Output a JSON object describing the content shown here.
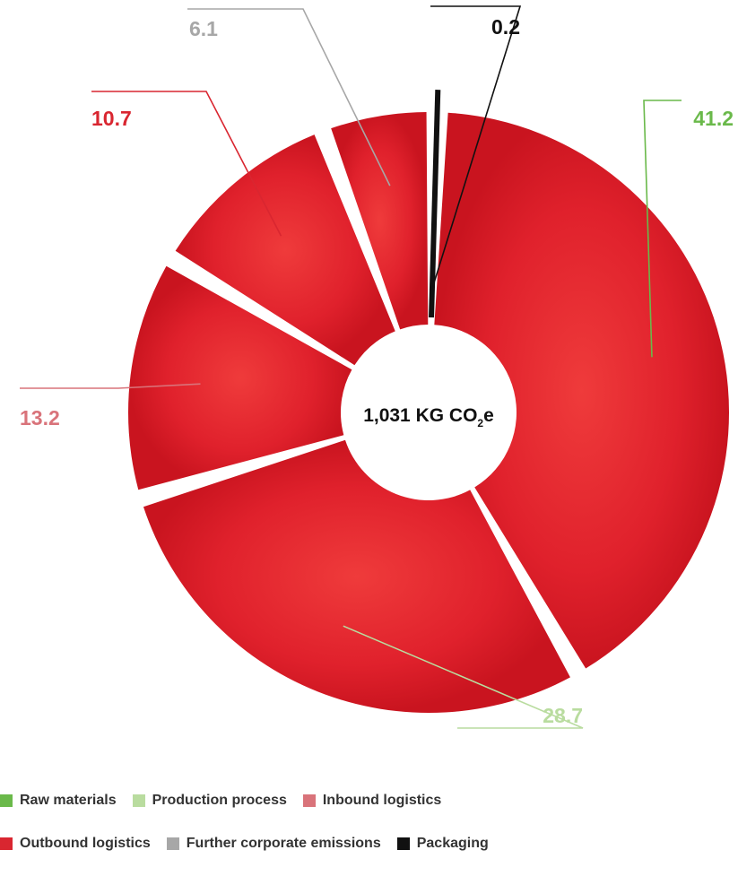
{
  "chart_data": {
    "type": "pie",
    "center_label": {
      "main": "1,031 KG CO",
      "sub": "2",
      "suffix": "e"
    },
    "slices": [
      {
        "label": "Raw materials",
        "value": 41.2,
        "color": "#6ab94a"
      },
      {
        "label": "Production process",
        "value": 28.7,
        "color": "#b9dc9f"
      },
      {
        "label": "Inbound logistics",
        "value": 13.2,
        "color": "#d9737a"
      },
      {
        "label": "Outbound logistics",
        "value": 10.7,
        "color": "#d92630"
      },
      {
        "label": "Further corporate emissions",
        "value": 6.1,
        "color": "#a7a7a7"
      },
      {
        "label": "Packaging",
        "value": 0.2,
        "color": "#111111"
      }
    ],
    "value_labels": [
      "41.2",
      "28.7",
      "13.2",
      "10.7",
      "6.1",
      "0.2"
    ],
    "legend_position": "bottom-left"
  },
  "legend": {
    "rows": [
      [
        {
          "label": "Raw materials",
          "color": "#6ab94a"
        },
        {
          "label": "Production process",
          "color": "#b9dc9f"
        },
        {
          "label": "Inbound logistics",
          "color": "#d9737a"
        }
      ],
      [
        {
          "label": "Outbound logistics",
          "color": "#d92630"
        },
        {
          "label": "Further corporate emissions",
          "color": "#a7a7a7"
        },
        {
          "label": "Packaging",
          "color": "#111111"
        }
      ]
    ]
  }
}
